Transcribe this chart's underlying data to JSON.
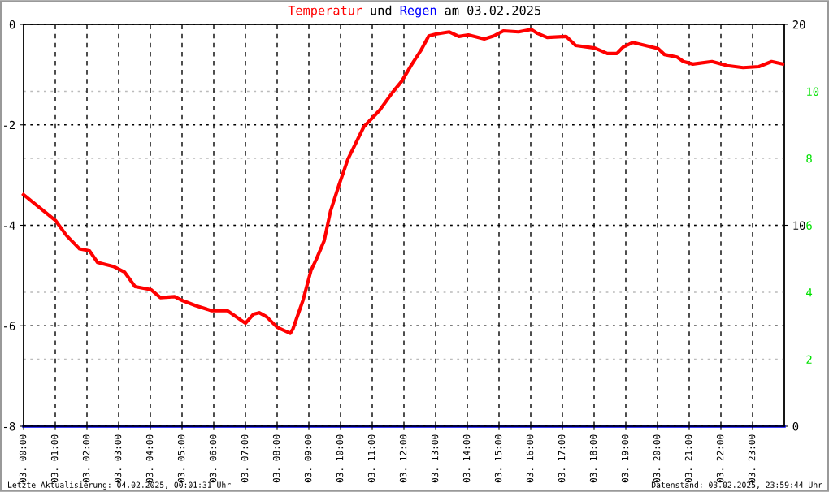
{
  "chart_data": {
    "type": "line",
    "title": "Temperatur und Regen am 03.02.2025",
    "series": [
      {
        "color": "#ff0000",
        "x": [
          "2025-02-03T00:00",
          "2025-02-03T01:01",
          "2025-02-03T01:21",
          "2025-02-03T01:46",
          "2025-02-03T02:05",
          "2025-02-03T02:20",
          "2025-02-03T02:50",
          "2025-02-03T03:11",
          "2025-02-03T03:31",
          "2025-02-03T04:01",
          "2025-02-03T04:19",
          "2025-02-03T04:46",
          "2025-02-03T05:01",
          "2025-02-03T05:26",
          "2025-02-03T05:56",
          "2025-02-03T06:26",
          "2025-02-03T07:00",
          "2025-02-03T07:15",
          "2025-02-03T07:26",
          "2025-02-03T07:40",
          "2025-02-03T08:00",
          "2025-02-03T08:25",
          "2025-02-03T08:30",
          "2025-02-03T08:49",
          "2025-02-03T09:04",
          "2025-02-03T09:14",
          "2025-02-03T09:29",
          "2025-02-03T09:41",
          "2025-02-03T09:57",
          "2025-02-03T10:14",
          "2025-02-03T10:44",
          "2025-02-03T11:14",
          "2025-02-03T11:38",
          "2025-02-03T11:56",
          "2025-02-03T12:14",
          "2025-02-03T12:32",
          "2025-02-03T12:47",
          "2025-02-03T13:02",
          "2025-02-03T13:26",
          "2025-02-03T13:44",
          "2025-02-03T14:02",
          "2025-02-03T14:32",
          "2025-02-03T14:50",
          "2025-02-03T15:08",
          "2025-02-03T15:37",
          "2025-02-03T16:01",
          "2025-02-03T16:13",
          "2025-02-03T16:31",
          "2025-02-03T17:07",
          "2025-02-03T17:25",
          "2025-02-03T18:01",
          "2025-02-03T18:25",
          "2025-02-03T18:43",
          "2025-02-03T18:55",
          "2025-02-03T19:13",
          "2025-02-03T19:37",
          "2025-02-03T20:01",
          "2025-02-03T20:13",
          "2025-02-03T20:37",
          "2025-02-03T20:49",
          "2025-02-03T21:07",
          "2025-02-03T21:43",
          "2025-02-03T22:12",
          "2025-02-03T22:42",
          "2025-02-03T23:12",
          "2025-02-03T23:36",
          "2025-02-03T23:57"
        ],
        "values": [
          -3.39,
          -3.91,
          -4.2,
          -4.47,
          -4.51,
          -4.74,
          -4.82,
          -4.93,
          -5.22,
          -5.28,
          -5.44,
          -5.42,
          -5.5,
          -5.6,
          -5.7,
          -5.7,
          -5.95,
          -5.77,
          -5.74,
          -5.82,
          -6.03,
          -6.15,
          -6.06,
          -5.49,
          -4.9,
          -4.68,
          -4.31,
          -3.72,
          -3.2,
          -2.68,
          -2.04,
          -1.71,
          -1.36,
          -1.13,
          -0.81,
          -0.52,
          -0.23,
          -0.19,
          -0.15,
          -0.24,
          -0.21,
          -0.29,
          -0.23,
          -0.13,
          -0.15,
          -0.1,
          -0.18,
          -0.26,
          -0.24,
          -0.42,
          -0.47,
          -0.58,
          -0.58,
          -0.45,
          -0.36,
          -0.42,
          -0.48,
          -0.6,
          -0.65,
          -0.74,
          -0.79,
          -0.74,
          -0.82,
          -0.86,
          -0.84,
          -0.74,
          -0.79
        ]
      },
      {
        "color": "#0000ff",
        "axis": "y2",
        "x": [
          "2025-02-03T00:00",
          "2025-02-04T00:00"
        ],
        "values": [
          0,
          0
        ]
      }
    ],
    "xlim": [
      "2025-02-03T00:00",
      "2025-02-04T00:00"
    ],
    "xticks": [
      {
        "value": "2025-02-03T00:00",
        "label": "03. 00:00"
      },
      {
        "value": "2025-02-03T01:00",
        "label": "03. 01:00"
      },
      {
        "value": "2025-02-03T02:00",
        "label": "03. 02:00"
      },
      {
        "value": "2025-02-03T03:00",
        "label": "03. 03:00"
      },
      {
        "value": "2025-02-03T04:00",
        "label": "03. 04:00"
      },
      {
        "value": "2025-02-03T05:00",
        "label": "03. 05:00"
      },
      {
        "value": "2025-02-03T06:00",
        "label": "03. 06:00"
      },
      {
        "value": "2025-02-03T07:00",
        "label": "03. 07:00"
      },
      {
        "value": "2025-02-03T08:00",
        "label": "03. 08:00"
      },
      {
        "value": "2025-02-03T09:00",
        "label": "03. 09:00"
      },
      {
        "value": "2025-02-03T10:00",
        "label": "03. 10:00"
      },
      {
        "value": "2025-02-03T11:00",
        "label": "03. 11:00"
      },
      {
        "value": "2025-02-03T12:00",
        "label": "03. 12:00"
      },
      {
        "value": "2025-02-03T13:00",
        "label": "03. 13:00"
      },
      {
        "value": "2025-02-03T14:00",
        "label": "03. 14:00"
      },
      {
        "value": "2025-02-03T15:00",
        "label": "03. 15:00"
      },
      {
        "value": "2025-02-03T16:00",
        "label": "03. 16:00"
      },
      {
        "value": "2025-02-03T17:00",
        "label": "03. 17:00"
      },
      {
        "value": "2025-02-03T18:00",
        "label": "03. 18:00"
      },
      {
        "value": "2025-02-03T19:00",
        "label": "03. 19:00"
      },
      {
        "value": "2025-02-03T20:00",
        "label": "03. 20:00"
      },
      {
        "value": "2025-02-03T21:00",
        "label": "03. 21:00"
      },
      {
        "value": "2025-02-03T22:00",
        "label": "03. 22:00"
      },
      {
        "value": "2025-02-03T23:00",
        "label": "03. 23:00"
      }
    ],
    "ylim": [
      -8,
      0
    ],
    "yticks": [
      -8,
      -6,
      -4,
      -2,
      0
    ],
    "y2lim": [
      0,
      20
    ],
    "y2ticks": [
      0,
      10,
      20
    ],
    "y3lim": [
      0,
      12
    ],
    "y3ticks": [
      2,
      4,
      6,
      8,
      10
    ],
    "grid": true,
    "legend": false,
    "marker": "none",
    "line_style": "solid",
    "annotations": [
      "Letzte Aktualisierung: 04.02.2025, 00:01:31 Uhr",
      "Datenstand: 03.02.2025, 23:59:44 Uhr"
    ]
  }
}
